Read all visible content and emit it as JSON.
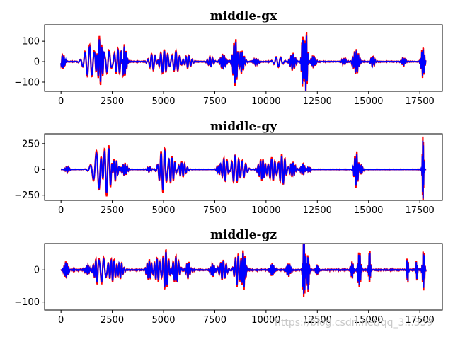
{
  "chart_data": [
    {
      "type": "line",
      "title": "middle-gx",
      "xlim": [
        -800,
        18600
      ],
      "ylim": [
        -145,
        180
      ],
      "xticks": [
        0,
        2500,
        5000,
        7500,
        10000,
        12500,
        15000,
        17500
      ],
      "yticks": [
        -100,
        0,
        100
      ],
      "series_colors": [
        "#ff0000",
        "#0000ff"
      ],
      "bursts": [
        {
          "x": 100,
          "width": 150,
          "amp": 32
        },
        {
          "x": 1400,
          "width": 400,
          "amp": 75
        },
        {
          "x": 1900,
          "width": 200,
          "amp": 110
        },
        {
          "x": 2300,
          "width": 300,
          "amp": 55
        },
        {
          "x": 2800,
          "width": 300,
          "amp": 60
        },
        {
          "x": 3100,
          "width": 150,
          "amp": 70
        },
        {
          "x": 4500,
          "width": 300,
          "amp": 40
        },
        {
          "x": 5000,
          "width": 350,
          "amp": 55
        },
        {
          "x": 5600,
          "width": 300,
          "amp": 50
        },
        {
          "x": 6200,
          "width": 250,
          "amp": 30
        },
        {
          "x": 7300,
          "width": 200,
          "amp": 25
        },
        {
          "x": 7900,
          "width": 200,
          "amp": 35
        },
        {
          "x": 8500,
          "width": 180,
          "amp": 110
        },
        {
          "x": 8800,
          "width": 200,
          "amp": 55
        },
        {
          "x": 9500,
          "width": 200,
          "amp": 15
        },
        {
          "x": 10600,
          "width": 300,
          "amp": 25
        },
        {
          "x": 11300,
          "width": 200,
          "amp": 40
        },
        {
          "x": 11800,
          "width": 100,
          "amp": 130
        },
        {
          "x": 11950,
          "width": 100,
          "amp": 160
        },
        {
          "x": 12300,
          "width": 150,
          "amp": 30
        },
        {
          "x": 13800,
          "width": 150,
          "amp": 15
        },
        {
          "x": 14400,
          "width": 200,
          "amp": 60
        },
        {
          "x": 15200,
          "width": 150,
          "amp": 25
        },
        {
          "x": 16700,
          "width": 150,
          "amp": 20
        },
        {
          "x": 17650,
          "width": 120,
          "amp": 75
        }
      ]
    },
    {
      "type": "line",
      "title": "middle-gy",
      "xlim": [
        -800,
        18600
      ],
      "ylim": [
        -300,
        345
      ],
      "xticks": [
        0,
        2500,
        5000,
        7500,
        10000,
        12500,
        15000,
        17500
      ],
      "yticks": [
        -250,
        0,
        250
      ],
      "series_colors": [
        "#ff0000",
        "#0000ff"
      ],
      "bursts": [
        {
          "x": 300,
          "width": 150,
          "amp": 25
        },
        {
          "x": 1800,
          "width": 400,
          "amp": 160
        },
        {
          "x": 2200,
          "width": 350,
          "amp": 240
        },
        {
          "x": 2600,
          "width": 250,
          "amp": 100
        },
        {
          "x": 3100,
          "width": 200,
          "amp": 60
        },
        {
          "x": 4300,
          "width": 150,
          "amp": 25
        },
        {
          "x": 5000,
          "width": 300,
          "amp": 210
        },
        {
          "x": 5400,
          "width": 300,
          "amp": 110
        },
        {
          "x": 5900,
          "width": 300,
          "amp": 70
        },
        {
          "x": 7700,
          "width": 150,
          "amp": 40
        },
        {
          "x": 8000,
          "width": 250,
          "amp": 110
        },
        {
          "x": 8500,
          "width": 300,
          "amp": 130
        },
        {
          "x": 8900,
          "width": 250,
          "amp": 70
        },
        {
          "x": 9800,
          "width": 250,
          "amp": 100
        },
        {
          "x": 10300,
          "width": 250,
          "amp": 110
        },
        {
          "x": 10800,
          "width": 250,
          "amp": 140
        },
        {
          "x": 11300,
          "width": 200,
          "amp": 70
        },
        {
          "x": 11800,
          "width": 150,
          "amp": 55
        },
        {
          "x": 12100,
          "width": 100,
          "amp": 25
        },
        {
          "x": 14400,
          "width": 150,
          "amp": 170
        },
        {
          "x": 14650,
          "width": 100,
          "amp": 50
        },
        {
          "x": 17650,
          "width": 60,
          "amp": 310
        }
      ]
    },
    {
      "type": "line",
      "title": "middle-gz",
      "xlim": [
        -800,
        18600
      ],
      "ylim": [
        -125,
        82
      ],
      "xticks": [
        0,
        2500,
        5000,
        7500,
        10000,
        12500,
        15000,
        17500
      ],
      "yticks": [
        -100,
        0
      ],
      "series_colors": [
        "#ff0000",
        "#0000ff"
      ],
      "bursts": [
        {
          "x": 250,
          "width": 150,
          "amp": 25
        },
        {
          "x": 1300,
          "width": 150,
          "amp": 15
        },
        {
          "x": 1700,
          "width": 200,
          "amp": 30
        },
        {
          "x": 2000,
          "width": 300,
          "amp": 40
        },
        {
          "x": 2500,
          "width": 250,
          "amp": 35
        },
        {
          "x": 2900,
          "width": 200,
          "amp": 25
        },
        {
          "x": 4300,
          "width": 200,
          "amp": 30
        },
        {
          "x": 4700,
          "width": 250,
          "amp": 35
        },
        {
          "x": 5100,
          "width": 250,
          "amp": 60
        },
        {
          "x": 5600,
          "width": 250,
          "amp": 40
        },
        {
          "x": 6200,
          "width": 150,
          "amp": 25
        },
        {
          "x": 7400,
          "width": 150,
          "amp": 20
        },
        {
          "x": 7900,
          "width": 250,
          "amp": 30
        },
        {
          "x": 8600,
          "width": 200,
          "amp": 50
        },
        {
          "x": 8900,
          "width": 150,
          "amp": 60
        },
        {
          "x": 10300,
          "width": 150,
          "amp": 20
        },
        {
          "x": 11100,
          "width": 150,
          "amp": 20
        },
        {
          "x": 11850,
          "width": 80,
          "amp": 110
        },
        {
          "x": 12050,
          "width": 80,
          "amp": 65
        },
        {
          "x": 12500,
          "width": 100,
          "amp": 15
        },
        {
          "x": 14200,
          "width": 100,
          "amp": 25
        },
        {
          "x": 14550,
          "width": 100,
          "amp": 60
        },
        {
          "x": 15050,
          "width": 60,
          "amp": 60
        },
        {
          "x": 16900,
          "width": 60,
          "amp": 45
        },
        {
          "x": 17350,
          "width": 60,
          "amp": 30
        },
        {
          "x": 17680,
          "width": 80,
          "amp": 60
        }
      ]
    }
  ],
  "watermark": "https://blog.csdn.net/qq_3...339"
}
